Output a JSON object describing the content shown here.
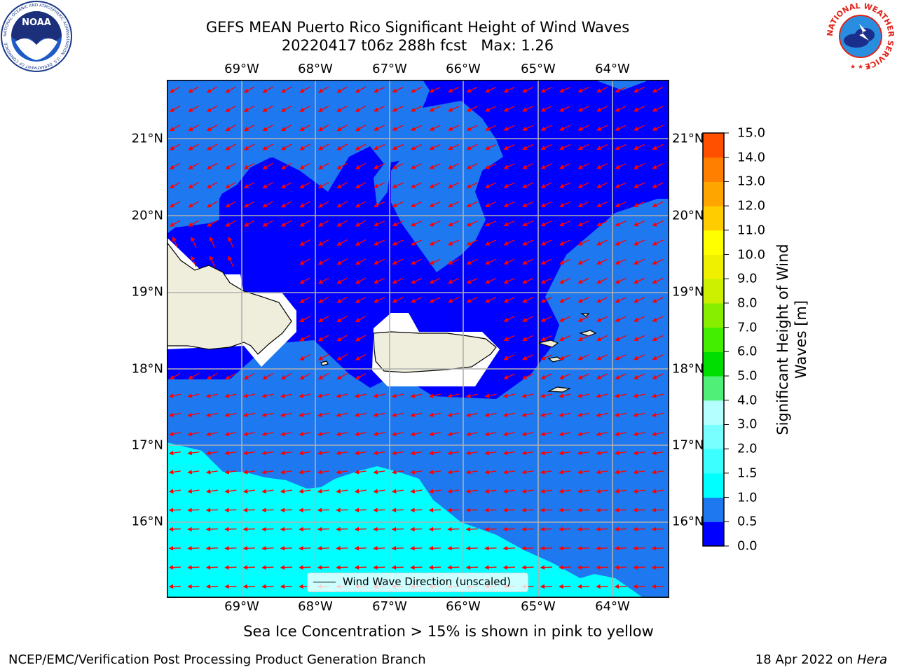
{
  "title_line1": "GEFS MEAN Puerto Rico Significant Height of Wind Waves",
  "title_line2": "20220417 t06z 288h fcst   Max: 1.26",
  "lon_ticks": [
    "69°W",
    "68°W",
    "67°W",
    "66°W",
    "65°W",
    "64°W"
  ],
  "lat_ticks": [
    "21°N",
    "20°N",
    "19°N",
    "18°N",
    "17°N",
    "16°N"
  ],
  "colorbar": {
    "label": "Significant Height of Wind Waves [m]",
    "ticks": [
      "0.0",
      "0.5",
      "1.0",
      "1.5",
      "2.0",
      "3.0",
      "4.0",
      "5.0",
      "6.0",
      "7.0",
      "8.0",
      "9.0",
      "10.0",
      "11.0",
      "12.0",
      "13.0",
      "14.0",
      "15.0"
    ],
    "colors": [
      "#0000ff",
      "#1e78f0",
      "#00ffff",
      "#3cffff",
      "#78ffff",
      "#b4ffff",
      "#50f078",
      "#00dd00",
      "#44ee00",
      "#88ee00",
      "#ccf000",
      "#eef000",
      "#ffff00",
      "#ffcc00",
      "#ffa500",
      "#ff7f00",
      "#ff5000",
      "#ff2800",
      "#ff0000"
    ]
  },
  "legend_label": "Wind Wave Direction (unscaled)",
  "subtitle": "Sea Ice Concentration > 15% is shown in pink to yellow",
  "footer_left": "NCEP/EMC/Verification Post Processing Product Generation Branch",
  "footer_date": "18 Apr 2022 on ",
  "footer_host": "Hera",
  "logos": {
    "left": {
      "text": "NOAA",
      "ring_text": "NATIONAL OCEANIC AND ATMOSPHERIC ADMINISTRATION · U.S. DEPARTMENT OF COMMERCE"
    },
    "right": {
      "ring_text": "NATIONAL WEATHER SERVICE"
    }
  },
  "map": {
    "region": "Puerto Rico",
    "lon_range": [
      -70.0,
      -63.25
    ],
    "lat_range": [
      15.0,
      21.75
    ],
    "colors": {
      "land": "#efeedd",
      "masked": "#ffffff",
      "arrows": "#ff0000",
      "grid": "#b0b0b0"
    },
    "value_levels": [
      {
        "range": "0.0–0.5",
        "color": "#0000ff"
      },
      {
        "range": "0.5–1.0",
        "color": "#1e78f0"
      },
      {
        "range": "1.0–1.5",
        "color": "#00ffff"
      }
    ]
  }
}
